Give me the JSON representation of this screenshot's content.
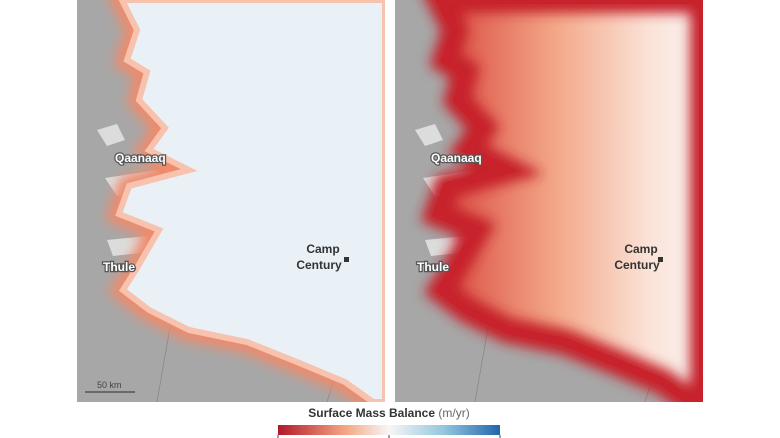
{
  "panels": [
    {
      "qaanaaq": "Qaanaaq",
      "thule": "Thule",
      "camp": [
        "Camp",
        "Century"
      ],
      "scale": "50 km"
    },
    {
      "qaanaaq": "Qaanaaq",
      "thule": "Thule",
      "camp": [
        "Camp",
        "Century"
      ]
    }
  ],
  "legend": {
    "title": "Surface Mass Balance",
    "unit": "(m/yr)"
  }
}
